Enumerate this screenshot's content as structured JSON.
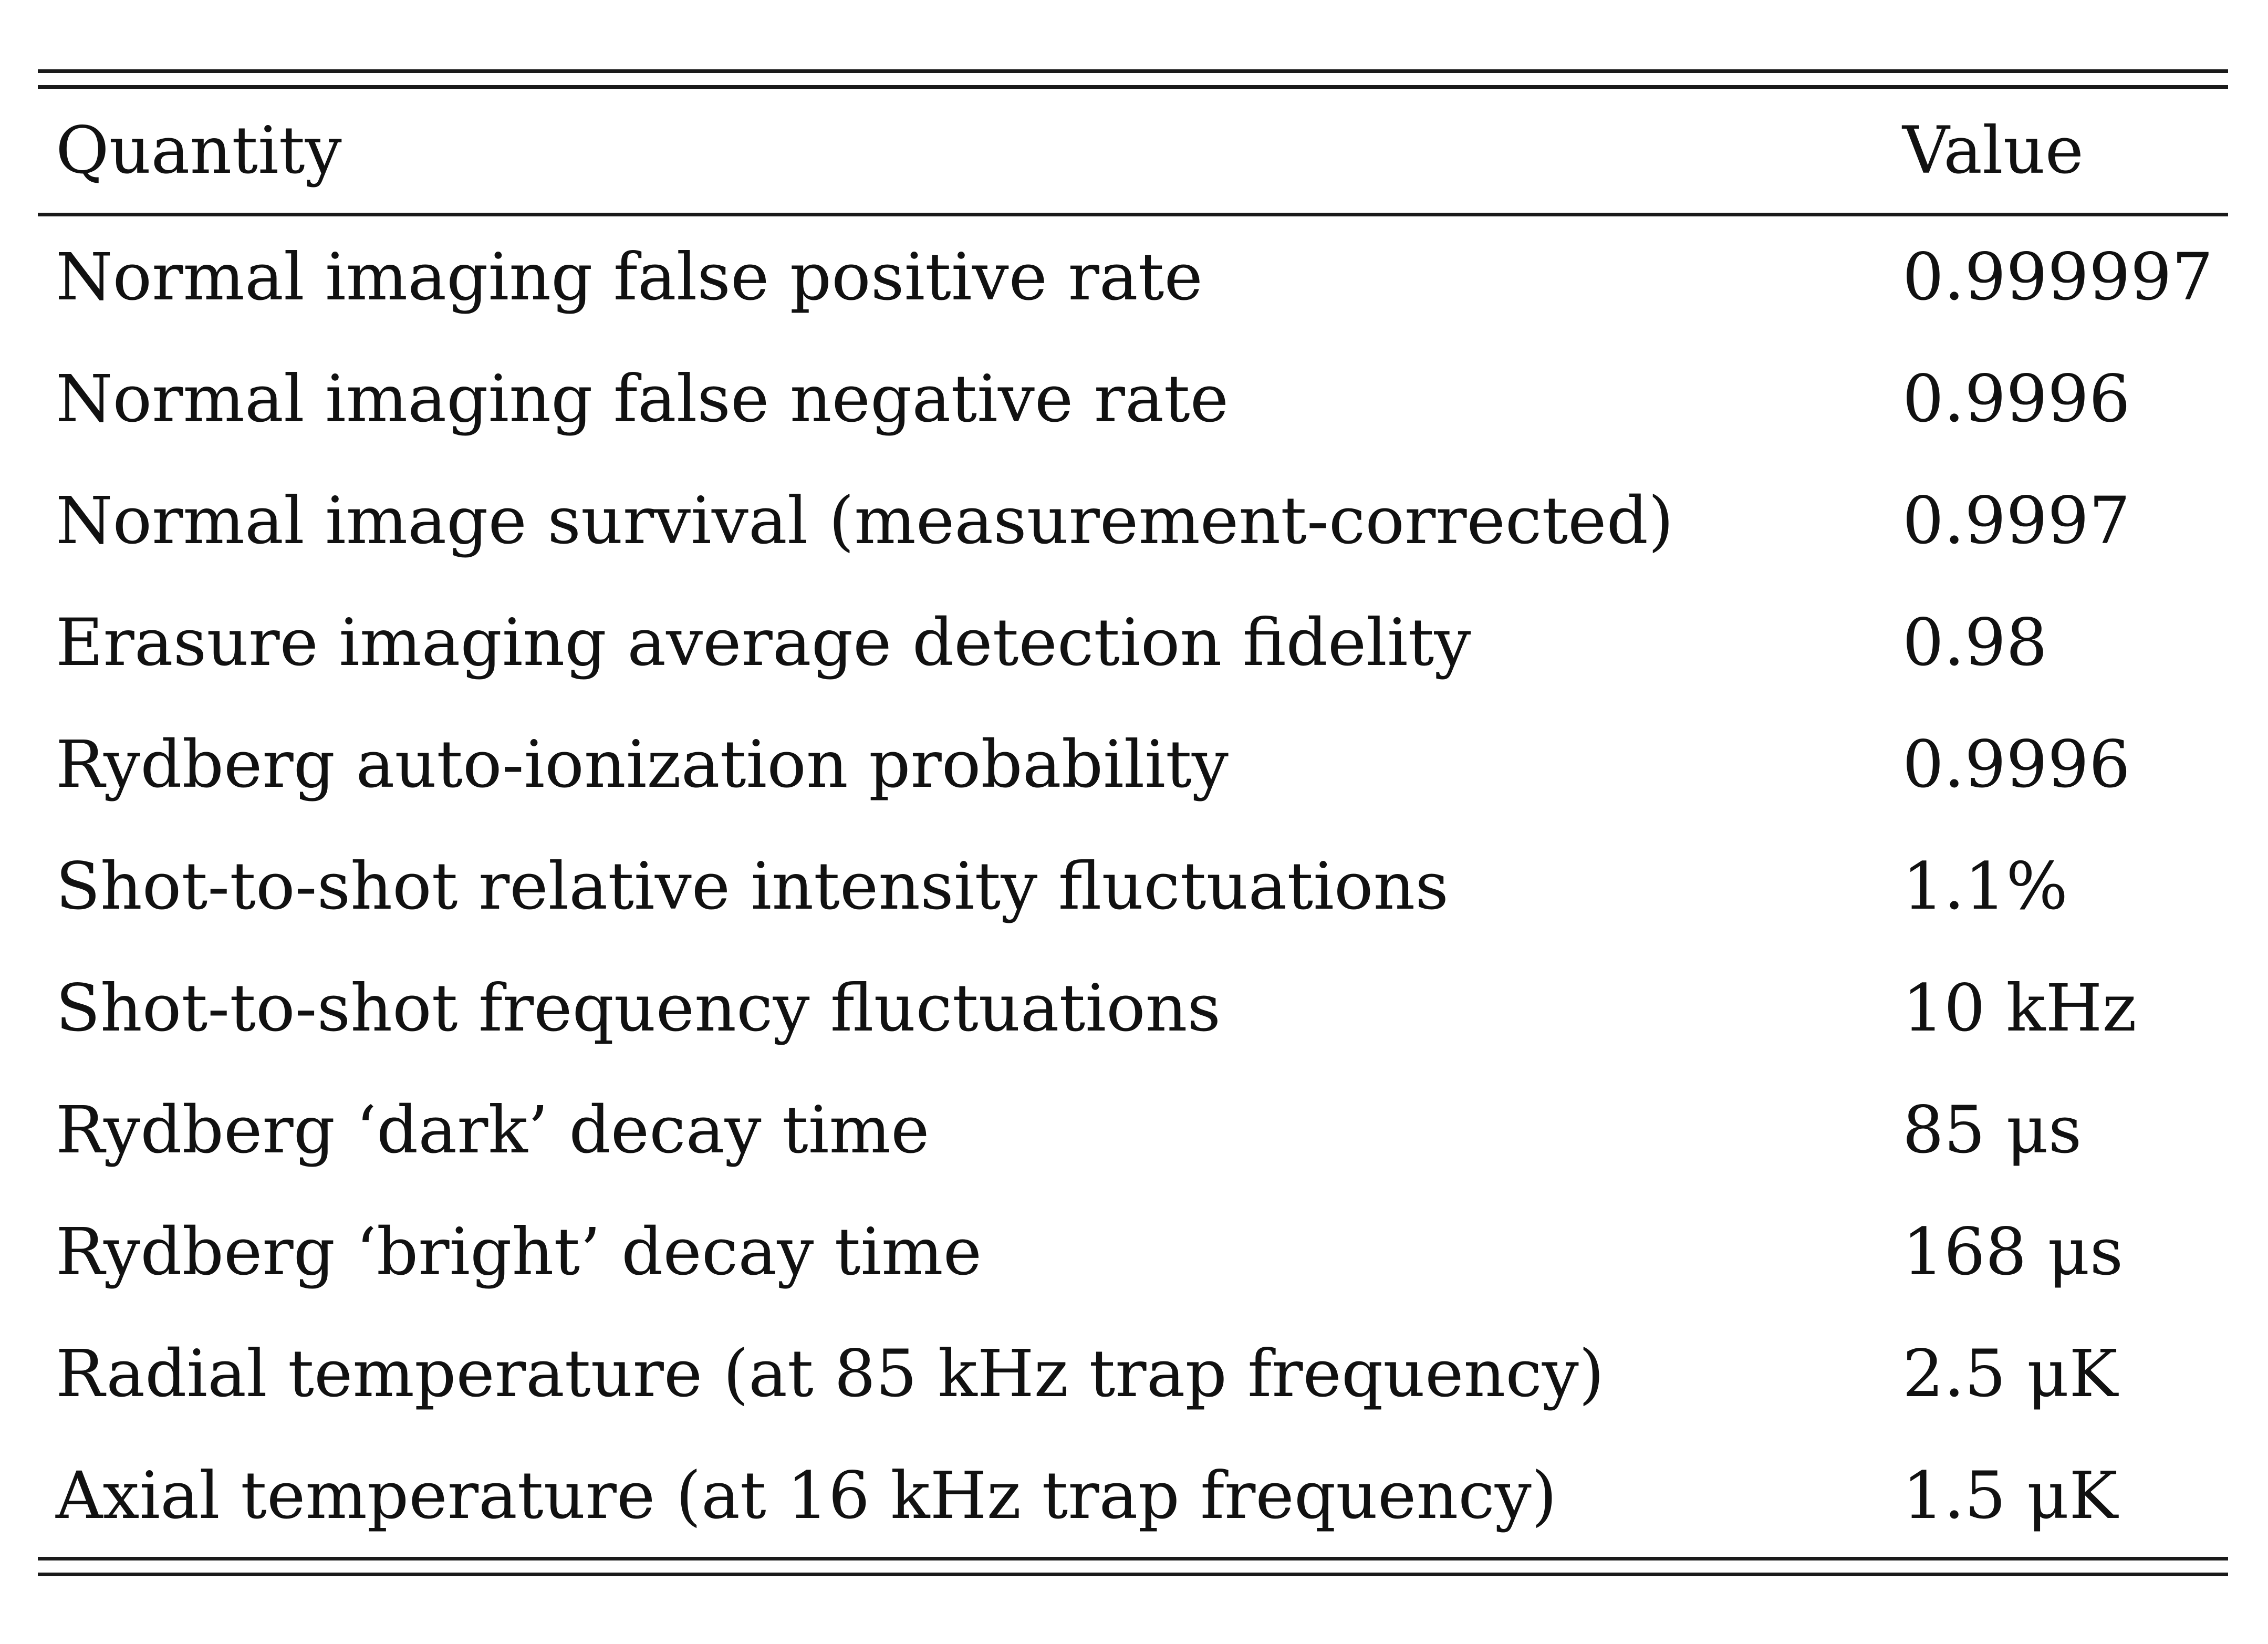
{
  "table": {
    "header": {
      "quantity": "Quantity",
      "value": "Value"
    },
    "rows": [
      {
        "quantity": "Normal imaging false positive rate",
        "value": "0.999997"
      },
      {
        "quantity": "Normal imaging false negative rate",
        "value": "0.9996"
      },
      {
        "quantity": "Normal image survival (measurement-corrected)",
        "value": "0.9997"
      },
      {
        "quantity": "Erasure imaging average detection fidelity",
        "value": "0.98"
      },
      {
        "quantity": "Rydberg auto-ionization probability",
        "value": "0.9996"
      },
      {
        "quantity": "Shot-to-shot relative intensity fluctuations",
        "value": "1.1%"
      },
      {
        "quantity": "Shot-to-shot frequency fluctuations",
        "value": "10 kHz"
      },
      {
        "quantity": "Rydberg ‘dark’ decay time",
        "value": "85 μs"
      },
      {
        "quantity": "Rydberg ‘bright’ decay time",
        "value": "168 μs"
      },
      {
        "quantity": "Radial temperature (at 85 kHz trap frequency)",
        "value": "2.5 μK"
      },
      {
        "quantity": "Axial temperature (at 16 kHz trap frequency)",
        "value": "1.5 μK"
      }
    ]
  }
}
